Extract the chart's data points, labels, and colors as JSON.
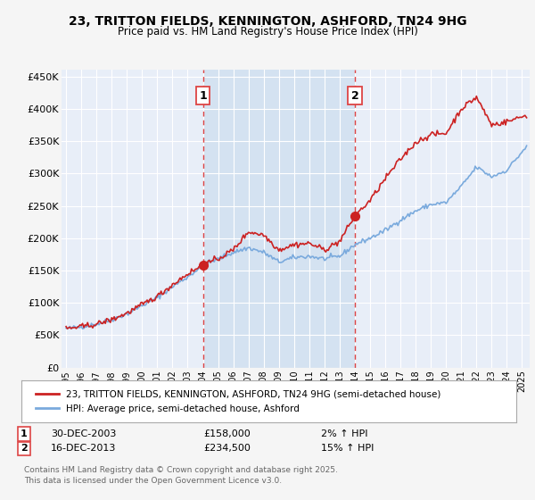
{
  "title": "23, TRITTON FIELDS, KENNINGTON, ASHFORD, TN24 9HG",
  "subtitle": "Price paid vs. HM Land Registry's House Price Index (HPI)",
  "fig_bg_color": "#f5f5f5",
  "plot_bg_color": "#e8eef8",
  "span_color": "#d0dff0",
  "legend_label_red": "23, TRITTON FIELDS, KENNINGTON, ASHFORD, TN24 9HG (semi-detached house)",
  "legend_label_blue": "HPI: Average price, semi-detached house, Ashford",
  "footer": "Contains HM Land Registry data © Crown copyright and database right 2025.\nThis data is licensed under the Open Government Licence v3.0.",
  "purchase1_date": "30-DEC-2003",
  "purchase1_price": 158000,
  "purchase1_hpi": "2% ↑ HPI",
  "purchase2_date": "16-DEC-2013",
  "purchase2_price": 234500,
  "purchase2_hpi": "15% ↑ HPI",
  "purchase1_x": 2004.0,
  "purchase2_x": 2014.0,
  "ylim": [
    0,
    460000
  ],
  "xlim_start": 1994.7,
  "xlim_end": 2025.5,
  "yticks": [
    0,
    50000,
    100000,
    150000,
    200000,
    250000,
    300000,
    350000,
    400000,
    450000
  ],
  "ytick_labels": [
    "£0",
    "£50K",
    "£100K",
    "£150K",
    "£200K",
    "£250K",
    "£300K",
    "£350K",
    "£400K",
    "£450K"
  ],
  "xtick_years": [
    1995,
    1996,
    1997,
    1998,
    1999,
    2000,
    2001,
    2002,
    2003,
    2004,
    2005,
    2006,
    2007,
    2008,
    2009,
    2010,
    2011,
    2012,
    2013,
    2014,
    2015,
    2016,
    2017,
    2018,
    2019,
    2020,
    2021,
    2022,
    2023,
    2024,
    2025
  ],
  "red_color": "#cc2222",
  "blue_color": "#7aaadd",
  "dashed_color": "#dd4444"
}
